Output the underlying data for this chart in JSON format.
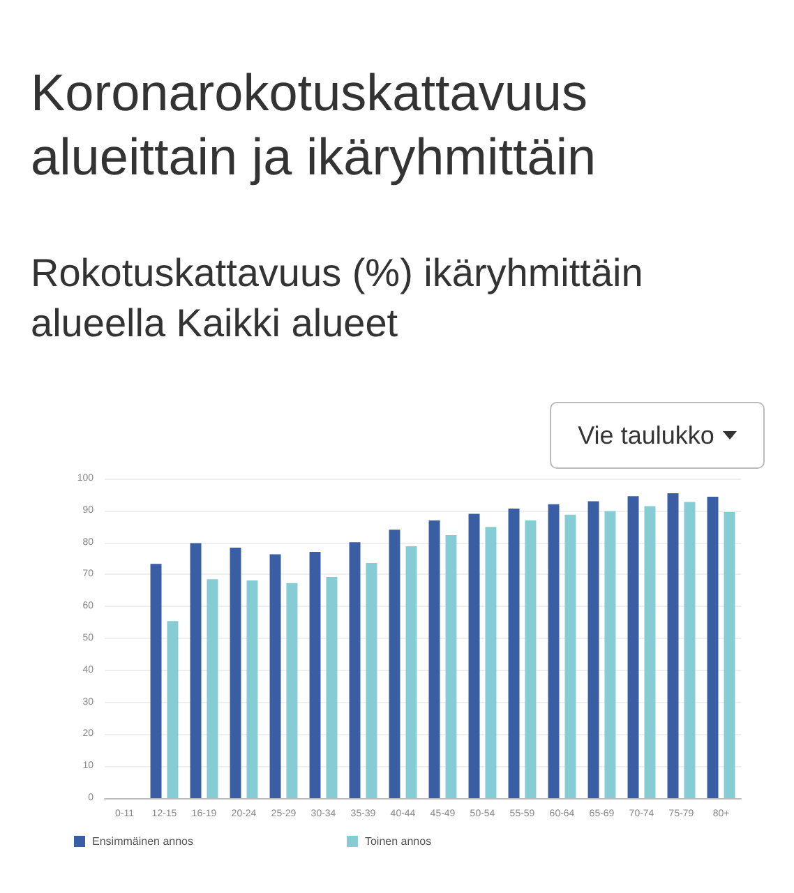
{
  "chart_data": {
    "type": "bar",
    "title": "Koronarokotuskattavuus alueittain ja ikäryhmittäin",
    "subtitle": "Rokotuskattavuus (%) ikäryhmittäin alueella Kaikki alueet",
    "annotations": [
      "Vie taulukko"
    ],
    "categories": [
      "0-11",
      "12-15",
      "16-19",
      "20-24",
      "25-29",
      "30-34",
      "35-39",
      "40-44",
      "45-49",
      "50-54",
      "55-59",
      "60-64",
      "65-69",
      "70-74",
      "75-79",
      "80+"
    ],
    "series": [
      {
        "name": "Ensimmäinen annos",
        "color": "#3a5ea3",
        "values": [
          null,
          73.3,
          79.8,
          78.4,
          76.3,
          77.1,
          80.1,
          84.0,
          86.9,
          89.0,
          90.6,
          92.0,
          92.9,
          94.5,
          95.4,
          94.3
        ]
      },
      {
        "name": "Toinen annos",
        "color": "#86ccd5",
        "values": [
          null,
          55.4,
          68.5,
          68.1,
          67.3,
          69.2,
          73.6,
          78.8,
          82.3,
          84.9,
          86.9,
          88.7,
          89.8,
          91.4,
          92.7,
          89.5
        ]
      }
    ],
    "ylim": [
      0,
      100
    ],
    "yticks": [
      0,
      10,
      20,
      30,
      40,
      50,
      60,
      70,
      80,
      90,
      100
    ],
    "grid": "y",
    "legend": "bottom left"
  }
}
